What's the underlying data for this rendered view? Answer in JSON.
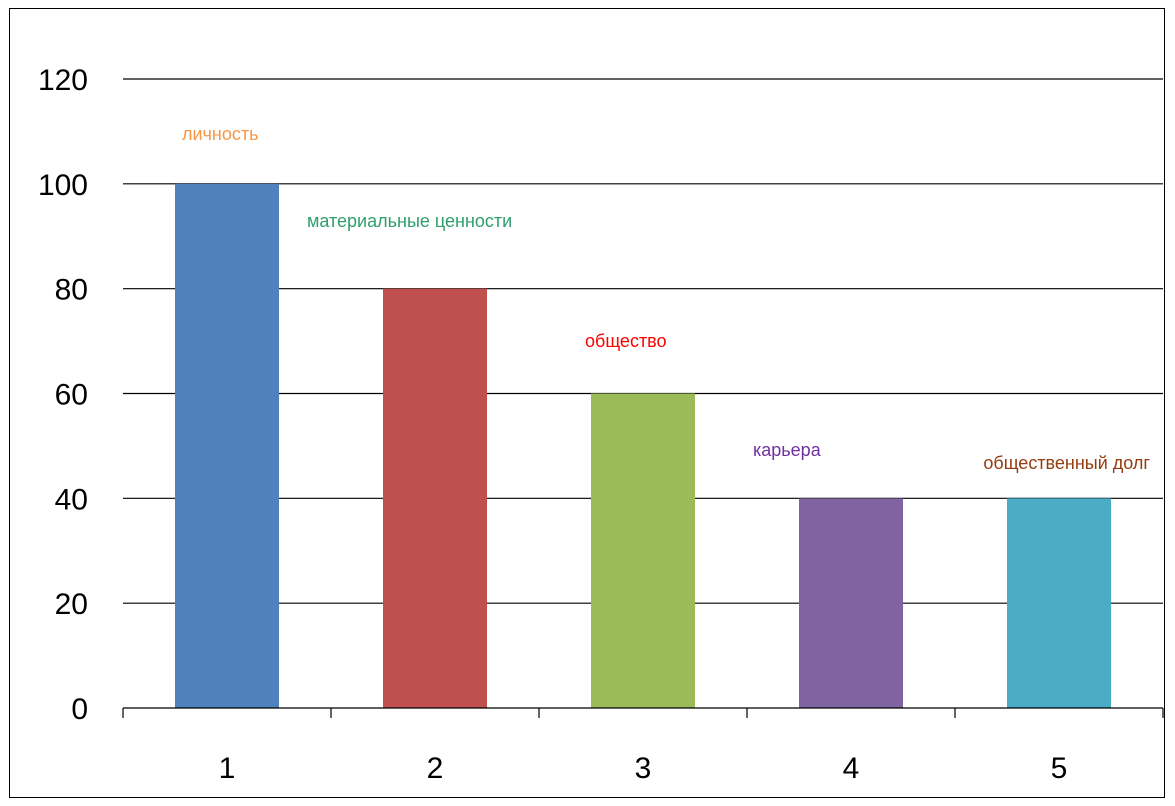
{
  "chart_data": {
    "type": "bar",
    "title": "",
    "xlabel": "",
    "ylabel": "",
    "ylim": [
      0,
      120
    ],
    "ytick_step": 20,
    "yticks": [
      "0",
      "20",
      "40",
      "60",
      "80",
      "100",
      "120"
    ],
    "grid": true,
    "legend": "none",
    "categories": [
      "1",
      "2",
      "3",
      "4",
      "5"
    ],
    "values": [
      100,
      80,
      60,
      40,
      40
    ],
    "bar_colors": [
      "#4f81bd",
      "#c0504d",
      "#9bbb59",
      "#8064a2",
      "#4bacc6"
    ],
    "annotations": [
      {
        "text": "личность",
        "color": "#f79646"
      },
      {
        "text": "материальные ценности",
        "color": "#2e9e6e"
      },
      {
        "text": "общество",
        "color": "#ff0000"
      },
      {
        "text": "карьера",
        "color": "#7030a0"
      },
      {
        "text": "общественный долг",
        "color": "#953c0e"
      }
    ]
  }
}
